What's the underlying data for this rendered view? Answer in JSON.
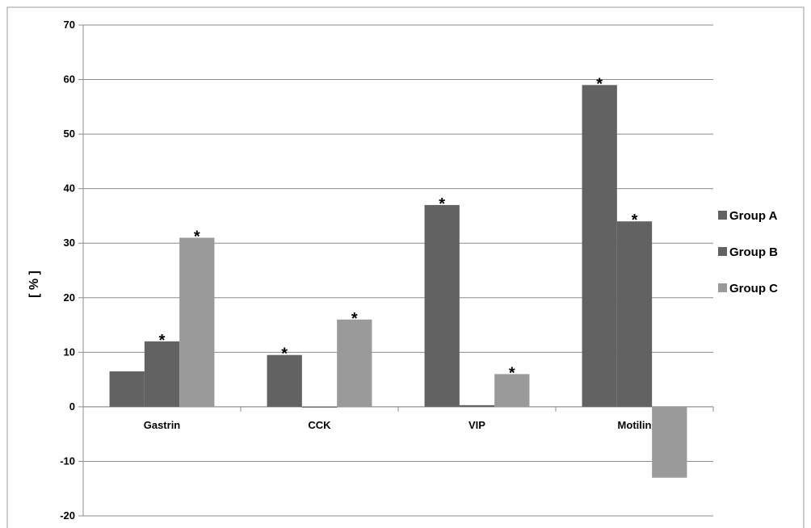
{
  "chart_data": {
    "type": "bar",
    "ylabel": "[ % ]",
    "ylim": [
      -20,
      70
    ],
    "yticks": [
      "-20",
      "-10",
      "0",
      "10",
      "20",
      "30",
      "40",
      "50",
      "60",
      "70"
    ],
    "categories": [
      "Gastrin",
      "CCK",
      "VIP",
      "Motilin"
    ],
    "series": [
      {
        "name": "Group A",
        "color": "#626262",
        "values": [
          6.5,
          9.5,
          37,
          59
        ],
        "marked": [
          false,
          true,
          true,
          true
        ]
      },
      {
        "name": "Group B",
        "color": "#626262",
        "values": [
          12,
          0,
          0.3,
          34
        ],
        "marked": [
          true,
          false,
          false,
          true
        ]
      },
      {
        "name": "Group C",
        "color": "#9a9a9a",
        "values": [
          31,
          16,
          6,
          -13
        ],
        "marked": [
          true,
          true,
          true,
          false
        ]
      }
    ],
    "significance_marker": "*",
    "grid": true,
    "legend_position": "right"
  }
}
